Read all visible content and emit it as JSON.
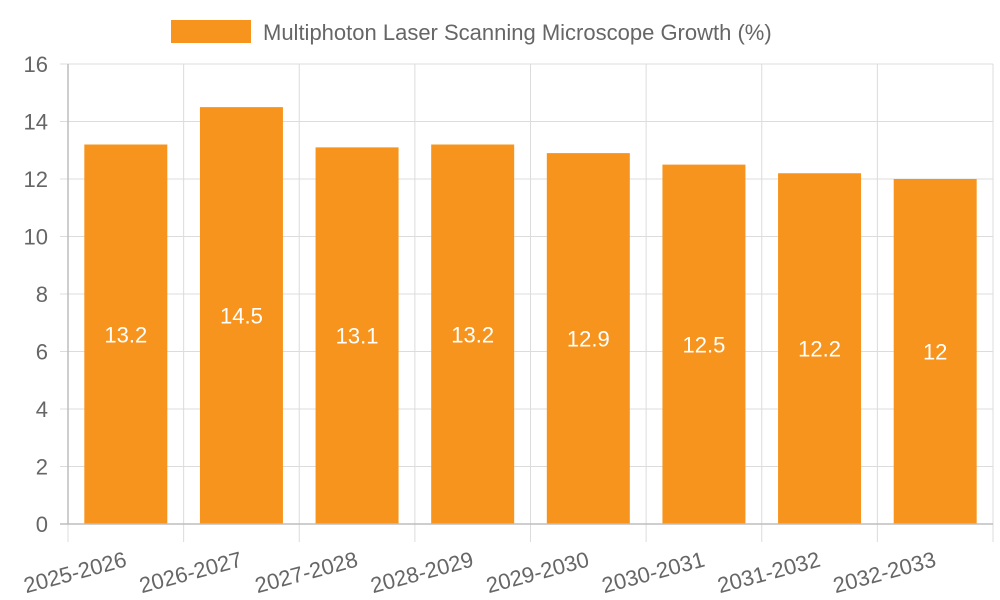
{
  "chart_data": {
    "type": "bar",
    "categories": [
      "2025-2026",
      "2026-2027",
      "2027-2028",
      "2028-2029",
      "2029-2030",
      "2030-2031",
      "2031-2032",
      "2032-2033"
    ],
    "series": [
      {
        "name": "Multiphoton Laser Scanning Microscope Growth (%)",
        "values": [
          13.2,
          14.5,
          13.1,
          13.2,
          12.9,
          12.5,
          12.2,
          12
        ],
        "color": "#f7941d"
      }
    ],
    "data_labels": [
      "13.2",
      "14.5",
      "13.1",
      "13.2",
      "12.9",
      "12.5",
      "12.2",
      "12"
    ],
    "y_ticks": [
      "0",
      "2",
      "4",
      "6",
      "8",
      "10",
      "12",
      "14",
      "16"
    ],
    "ylim": [
      0,
      16
    ],
    "title": "",
    "xlabel": "",
    "ylabel": "",
    "grid": true,
    "legend_position": "top"
  }
}
